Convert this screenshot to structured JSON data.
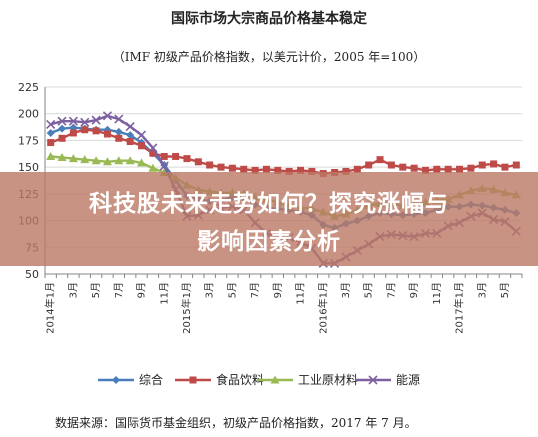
{
  "title": "国际市场大宗商品价格基本稳定",
  "subtitle": "（IMF 初级产品价格指数，以美元计价，2005 年=100）",
  "source": "数据来源：国际货币基金组织，初级产品价格指数，2017 年 7 月。",
  "banner": {
    "line1": "科技股未来走势如何？探究涨幅与",
    "line2": "影响因素分析"
  },
  "colors": {
    "综合": "#4a7ebb",
    "食品饮料": "#be4b48",
    "工业原材料": "#98b954",
    "能源": "#7d60a0",
    "grid": "#d9d9d9",
    "axis": "#868686",
    "banner": "#bc7864"
  },
  "chart_data": {
    "type": "line",
    "ylim": [
      50,
      225
    ],
    "yticks": [
      50,
      75,
      100,
      125,
      150,
      175,
      200,
      225
    ],
    "grid": true,
    "legend_position": "bottom",
    "x_labels": [
      "2014年1月",
      "3月",
      "5月",
      "7月",
      "9月",
      "11月",
      "2015年1月",
      "3月",
      "5月",
      "7月",
      "9月",
      "11月",
      "2016年1月",
      "3月",
      "5月",
      "7月",
      "9月",
      "11月",
      "2017年1月",
      "3月",
      "5月"
    ],
    "x": [
      "2014-01",
      "2014-02",
      "2014-03",
      "2014-04",
      "2014-05",
      "2014-06",
      "2014-07",
      "2014-08",
      "2014-09",
      "2014-10",
      "2014-11",
      "2014-12",
      "2015-01",
      "2015-02",
      "2015-03",
      "2015-04",
      "2015-05",
      "2015-06",
      "2015-07",
      "2015-08",
      "2015-09",
      "2015-10",
      "2015-11",
      "2015-12",
      "2016-01",
      "2016-02",
      "2016-03",
      "2016-04",
      "2016-05",
      "2016-06",
      "2016-07",
      "2016-08",
      "2016-09",
      "2016-10",
      "2016-11",
      "2016-12",
      "2017-01",
      "2017-02",
      "2017-03",
      "2017-04",
      "2017-05",
      "2017-06"
    ],
    "series": [
      {
        "name": "综合",
        "marker": "diamond",
        "values": [
          182,
          186,
          187,
          186,
          185,
          185,
          183,
          180,
          173,
          163,
          152,
          138,
          123,
          120,
          118,
          119,
          122,
          121,
          115,
          112,
          111,
          110,
          108,
          105,
          96,
          93,
          97,
          100,
          104,
          107,
          106,
          105,
          106,
          107,
          110,
          113,
          113,
          115,
          114,
          112,
          110,
          107
        ]
      },
      {
        "name": "食品饮料",
        "marker": "square",
        "values": [
          173,
          177,
          182,
          185,
          184,
          181,
          177,
          174,
          170,
          163,
          160,
          160,
          158,
          155,
          152,
          150,
          149,
          148,
          147,
          148,
          147,
          146,
          147,
          146,
          144,
          145,
          146,
          148,
          152,
          157,
          152,
          150,
          149,
          147,
          148,
          148,
          148,
          149,
          152,
          153,
          150,
          152
        ]
      },
      {
        "name": "工业原材料",
        "marker": "triangle",
        "values": [
          160,
          159,
          158,
          157,
          156,
          155,
          156,
          156,
          154,
          149,
          145,
          140,
          133,
          129,
          127,
          126,
          126,
          125,
          122,
          120,
          117,
          114,
          112,
          111,
          108,
          104,
          106,
          110,
          114,
          116,
          116,
          114,
          114,
          117,
          119,
          120,
          124,
          128,
          130,
          129,
          126,
          124
        ]
      },
      {
        "name": "能源",
        "marker": "cross",
        "values": [
          190,
          193,
          193,
          192,
          194,
          198,
          195,
          188,
          180,
          168,
          151,
          129,
          104,
          105,
          110,
          112,
          113,
          110,
          98,
          88,
          85,
          84,
          80,
          74,
          60,
          60,
          66,
          72,
          78,
          85,
          87,
          86,
          85,
          88,
          88,
          95,
          98,
          104,
          107,
          101,
          99,
          90
        ]
      }
    ]
  }
}
